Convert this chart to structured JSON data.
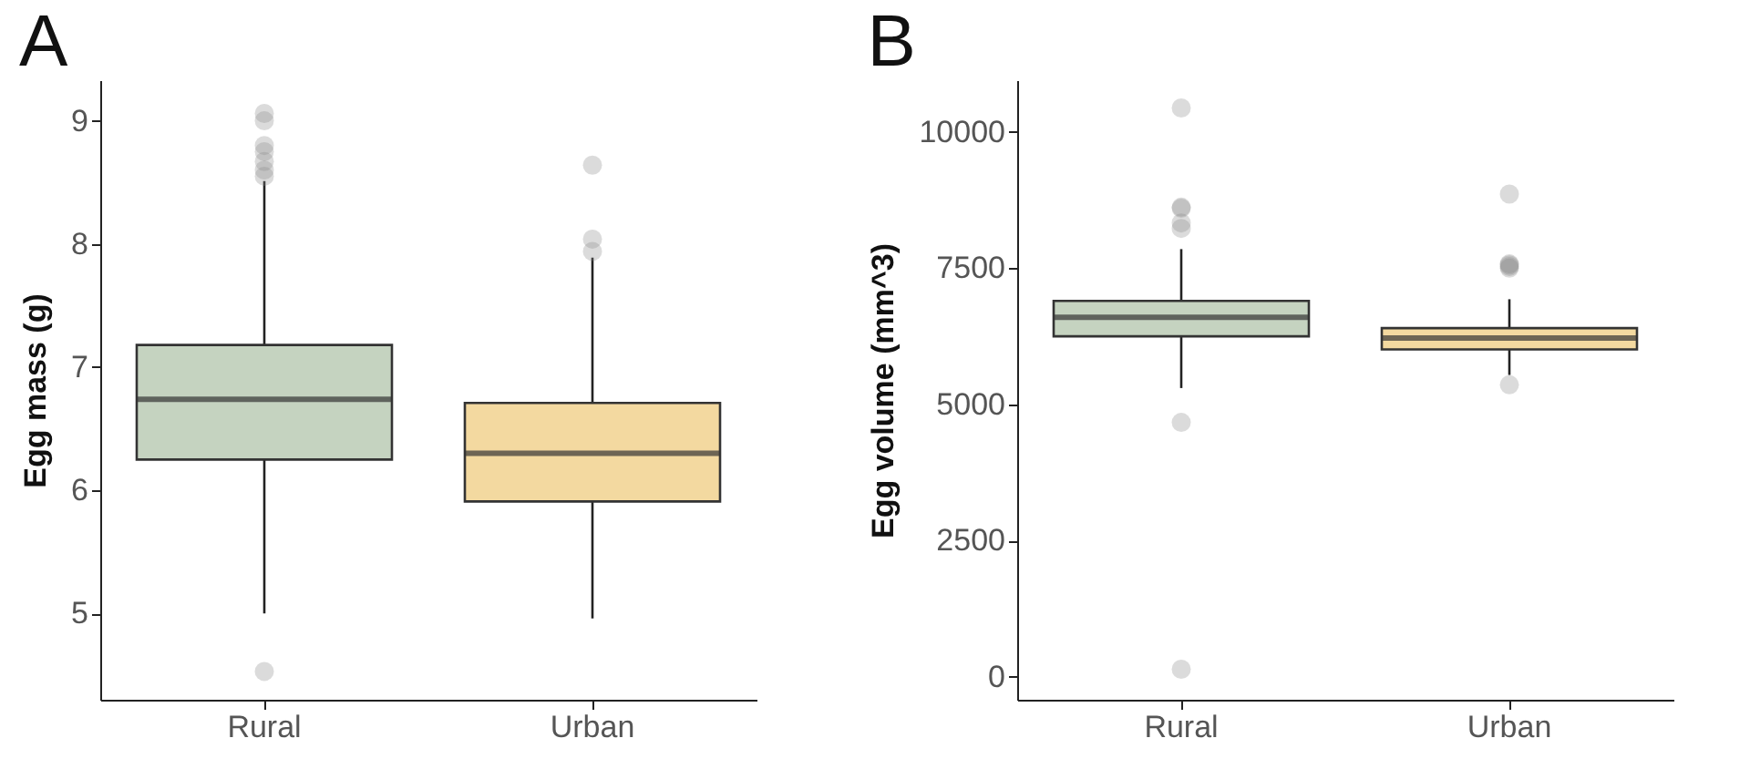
{
  "chart_data": [
    {
      "type": "box",
      "title": "A",
      "ylabel": "Egg mass (g)",
      "categories": [
        "Rural",
        "Urban"
      ],
      "colors": [
        "#c5d3c0",
        "#f3d9a0"
      ],
      "boxes": [
        {
          "low": 5.0,
          "q1": 6.25,
          "median": 6.74,
          "q3": 7.18,
          "high": 8.51,
          "outliers": [
            4.53,
            8.55,
            8.6,
            8.67,
            8.75,
            8.8,
            9.0,
            9.06
          ]
        },
        {
          "low": 4.96,
          "q1": 5.91,
          "median": 6.3,
          "q3": 6.71,
          "high": 7.89,
          "outliers": [
            7.94,
            8.04,
            8.64
          ]
        }
      ],
      "ylim": [
        4.3,
        9.33
      ],
      "yticks": [
        5,
        6,
        7,
        8,
        9
      ],
      "grid": false
    },
    {
      "type": "box",
      "title": "B",
      "ylabel": "Egg volume (mm^3)",
      "categories": [
        "Rural",
        "Urban"
      ],
      "colors": [
        "#c5d3c0",
        "#f3d9a0"
      ],
      "boxes": [
        {
          "low": 5300,
          "q1": 6250,
          "median": 6600,
          "q3": 6900,
          "high": 7850,
          "outliers": [
            140,
            4670,
            8230,
            8330,
            8600,
            8620,
            10440
          ]
        },
        {
          "low": 5540,
          "q1": 6010,
          "median": 6220,
          "q3": 6400,
          "high": 6930,
          "outliers": [
            5360,
            7500,
            7530,
            7560,
            7580,
            8860
          ]
        }
      ],
      "ylim": [
        -420,
        10950
      ],
      "yticks": [
        0,
        2500,
        5000,
        7500,
        10000
      ],
      "grid": false
    }
  ]
}
